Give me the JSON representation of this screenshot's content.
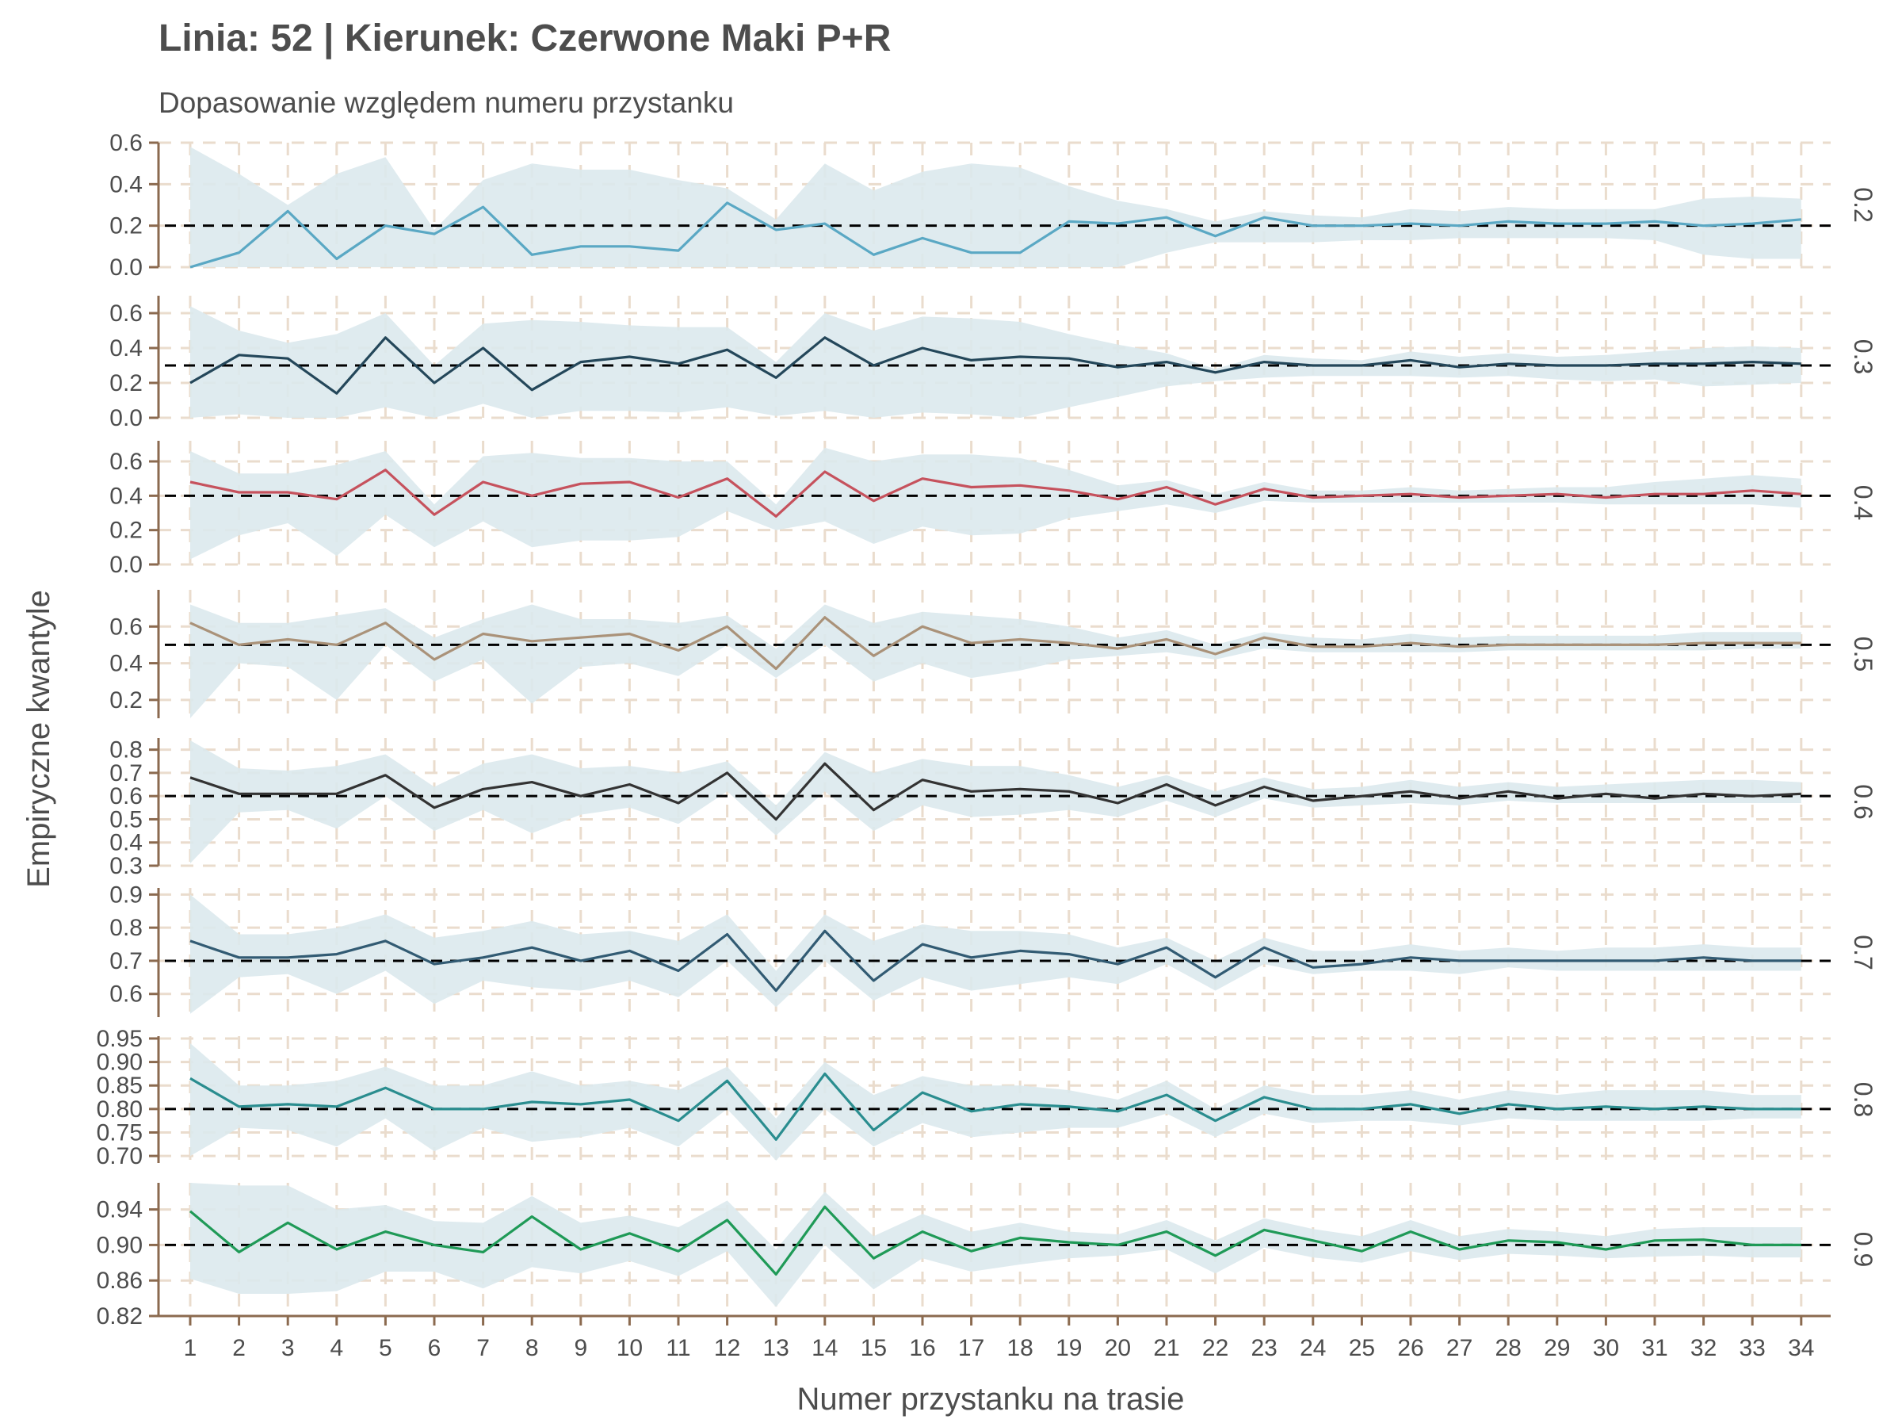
{
  "chart_data": {
    "type": "line",
    "title": "Linia: 52 | Kierunek: Czerwone Maki P+R",
    "subtitle": "Dopasowanie względem numeru przystanku",
    "xlabel": "Numer przystanku na trasie",
    "ylabel": "Empiryczne kwantyle",
    "x": [
      1,
      2,
      3,
      4,
      5,
      6,
      7,
      8,
      9,
      10,
      11,
      12,
      13,
      14,
      15,
      16,
      17,
      18,
      19,
      20,
      21,
      22,
      23,
      24,
      25,
      26,
      27,
      28,
      29,
      30,
      31,
      32,
      33,
      34
    ],
    "x_tick_labels": [
      "1",
      "2",
      "3",
      "4",
      "5",
      "6",
      "7",
      "8",
      "9",
      "10",
      "11",
      "12",
      "13",
      "14",
      "15",
      "16",
      "17",
      "18",
      "19",
      "20",
      "21",
      "22",
      "23",
      "24",
      "25",
      "26",
      "27",
      "28",
      "29",
      "30",
      "31",
      "32",
      "33",
      "34"
    ],
    "grid": true,
    "band_color": "#dbe9ed",
    "reference_line_style": "dashed black",
    "panels": [
      {
        "strip_label": "0.2",
        "reference": 0.2,
        "color": "#5aa8c4",
        "ylim": [
          0,
          0.6
        ],
        "y_ticks": [
          "0.0",
          "0.2",
          "0.4",
          "0.6"
        ],
        "values": [
          0.0,
          0.07,
          0.27,
          0.04,
          0.2,
          0.16,
          0.29,
          0.06,
          0.1,
          0.1,
          0.08,
          0.31,
          0.18,
          0.21,
          0.06,
          0.14,
          0.07,
          0.07,
          0.22,
          0.21,
          0.24,
          0.15,
          0.24,
          0.2,
          0.2,
          0.21,
          0.2,
          0.22,
          0.21,
          0.21,
          0.22,
          0.2,
          0.21,
          0.23
        ],
        "lower": [
          0.0,
          0.0,
          0.0,
          0.0,
          0.0,
          0.0,
          0.0,
          0.0,
          0.0,
          0.0,
          0.0,
          0.0,
          0.0,
          0.0,
          0.0,
          0.0,
          0.0,
          0.0,
          0.0,
          0.0,
          0.07,
          0.12,
          0.12,
          0.12,
          0.13,
          0.13,
          0.14,
          0.14,
          0.14,
          0.14,
          0.13,
          0.06,
          0.04,
          0.04
        ],
        "upper": [
          0.58,
          0.45,
          0.3,
          0.45,
          0.53,
          0.18,
          0.42,
          0.5,
          0.47,
          0.47,
          0.42,
          0.38,
          0.23,
          0.5,
          0.37,
          0.46,
          0.5,
          0.48,
          0.39,
          0.32,
          0.28,
          0.22,
          0.27,
          0.25,
          0.24,
          0.28,
          0.27,
          0.29,
          0.28,
          0.28,
          0.28,
          0.33,
          0.34,
          0.33
        ]
      },
      {
        "strip_label": "0.3",
        "reference": 0.3,
        "color": "#24475a",
        "ylim": [
          0,
          0.7
        ],
        "y_ticks": [
          "0.0",
          "0.2",
          "0.4",
          "0.6"
        ],
        "values": [
          0.2,
          0.36,
          0.34,
          0.14,
          0.46,
          0.2,
          0.4,
          0.16,
          0.32,
          0.35,
          0.31,
          0.39,
          0.23,
          0.46,
          0.3,
          0.4,
          0.33,
          0.35,
          0.34,
          0.29,
          0.32,
          0.26,
          0.32,
          0.3,
          0.3,
          0.33,
          0.29,
          0.31,
          0.3,
          0.3,
          0.31,
          0.31,
          0.32,
          0.31
        ],
        "lower": [
          0.0,
          0.02,
          0.0,
          0.0,
          0.06,
          0.0,
          0.08,
          0.0,
          0.04,
          0.04,
          0.03,
          0.06,
          0.01,
          0.04,
          0.0,
          0.03,
          0.02,
          0.0,
          0.06,
          0.12,
          0.18,
          0.21,
          0.23,
          0.24,
          0.24,
          0.24,
          0.23,
          0.24,
          0.22,
          0.21,
          0.22,
          0.18,
          0.19,
          0.2
        ],
        "upper": [
          0.64,
          0.5,
          0.43,
          0.48,
          0.6,
          0.3,
          0.54,
          0.56,
          0.55,
          0.53,
          0.52,
          0.52,
          0.32,
          0.6,
          0.5,
          0.58,
          0.57,
          0.55,
          0.48,
          0.42,
          0.37,
          0.28,
          0.36,
          0.34,
          0.33,
          0.38,
          0.35,
          0.37,
          0.35,
          0.36,
          0.38,
          0.4,
          0.41,
          0.4
        ]
      },
      {
        "strip_label": "0.4",
        "reference": 0.4,
        "color": "#c6525d",
        "ylim": [
          0,
          0.72
        ],
        "y_ticks": [
          "0.0",
          "0.2",
          "0.4",
          "0.6"
        ],
        "values": [
          0.48,
          0.42,
          0.42,
          0.38,
          0.55,
          0.29,
          0.48,
          0.4,
          0.47,
          0.48,
          0.39,
          0.5,
          0.28,
          0.54,
          0.37,
          0.5,
          0.45,
          0.46,
          0.43,
          0.38,
          0.45,
          0.35,
          0.44,
          0.39,
          0.4,
          0.41,
          0.39,
          0.4,
          0.41,
          0.39,
          0.41,
          0.41,
          0.43,
          0.41
        ],
        "lower": [
          0.03,
          0.17,
          0.24,
          0.05,
          0.29,
          0.1,
          0.25,
          0.1,
          0.14,
          0.14,
          0.16,
          0.31,
          0.2,
          0.25,
          0.12,
          0.22,
          0.17,
          0.18,
          0.27,
          0.31,
          0.35,
          0.3,
          0.37,
          0.36,
          0.36,
          0.36,
          0.36,
          0.36,
          0.36,
          0.35,
          0.35,
          0.35,
          0.35,
          0.33
        ],
        "upper": [
          0.66,
          0.53,
          0.53,
          0.58,
          0.66,
          0.35,
          0.63,
          0.65,
          0.62,
          0.62,
          0.6,
          0.6,
          0.35,
          0.68,
          0.6,
          0.64,
          0.64,
          0.62,
          0.55,
          0.46,
          0.49,
          0.41,
          0.48,
          0.43,
          0.43,
          0.45,
          0.43,
          0.44,
          0.45,
          0.45,
          0.48,
          0.5,
          0.52,
          0.5
        ]
      },
      {
        "strip_label": "0.5",
        "reference": 0.5,
        "color": "#aa9279",
        "ylim": [
          0.1,
          0.8
        ],
        "y_ticks": [
          "0.2",
          "0.4",
          "0.6"
        ],
        "values": [
          0.62,
          0.5,
          0.53,
          0.5,
          0.62,
          0.42,
          0.56,
          0.52,
          0.54,
          0.56,
          0.47,
          0.6,
          0.37,
          0.65,
          0.44,
          0.6,
          0.51,
          0.53,
          0.51,
          0.48,
          0.53,
          0.45,
          0.54,
          0.49,
          0.49,
          0.51,
          0.49,
          0.5,
          0.5,
          0.5,
          0.5,
          0.51,
          0.51,
          0.51
        ],
        "lower": [
          0.1,
          0.4,
          0.38,
          0.2,
          0.5,
          0.3,
          0.42,
          0.18,
          0.38,
          0.4,
          0.33,
          0.5,
          0.32,
          0.5,
          0.3,
          0.4,
          0.32,
          0.36,
          0.42,
          0.44,
          0.46,
          0.42,
          0.48,
          0.46,
          0.46,
          0.46,
          0.46,
          0.47,
          0.47,
          0.47,
          0.47,
          0.47,
          0.48,
          0.48
        ],
        "upper": [
          0.72,
          0.62,
          0.62,
          0.66,
          0.7,
          0.54,
          0.64,
          0.72,
          0.64,
          0.64,
          0.62,
          0.66,
          0.48,
          0.72,
          0.62,
          0.68,
          0.66,
          0.64,
          0.6,
          0.54,
          0.58,
          0.5,
          0.57,
          0.54,
          0.53,
          0.56,
          0.54,
          0.55,
          0.55,
          0.55,
          0.55,
          0.57,
          0.57,
          0.57
        ]
      },
      {
        "strip_label": "0.6",
        "reference": 0.6,
        "color": "#333333",
        "ylim": [
          0.3,
          0.85
        ],
        "y_ticks": [
          "0.3",
          "0.4",
          "0.5",
          "0.6",
          "0.7",
          "0.8"
        ],
        "values": [
          0.68,
          0.61,
          0.61,
          0.61,
          0.69,
          0.55,
          0.63,
          0.66,
          0.6,
          0.65,
          0.57,
          0.7,
          0.5,
          0.74,
          0.54,
          0.67,
          0.62,
          0.63,
          0.62,
          0.57,
          0.65,
          0.56,
          0.64,
          0.58,
          0.6,
          0.62,
          0.59,
          0.62,
          0.59,
          0.61,
          0.59,
          0.61,
          0.6,
          0.61
        ],
        "lower": [
          0.31,
          0.53,
          0.54,
          0.46,
          0.6,
          0.45,
          0.54,
          0.44,
          0.52,
          0.55,
          0.48,
          0.62,
          0.43,
          0.62,
          0.45,
          0.56,
          0.51,
          0.52,
          0.54,
          0.51,
          0.58,
          0.51,
          0.59,
          0.55,
          0.56,
          0.57,
          0.56,
          0.58,
          0.57,
          0.57,
          0.57,
          0.57,
          0.57,
          0.57
        ],
        "upper": [
          0.84,
          0.72,
          0.71,
          0.73,
          0.78,
          0.64,
          0.74,
          0.78,
          0.72,
          0.73,
          0.7,
          0.75,
          0.56,
          0.79,
          0.7,
          0.76,
          0.73,
          0.73,
          0.69,
          0.64,
          0.69,
          0.62,
          0.68,
          0.63,
          0.64,
          0.67,
          0.64,
          0.66,
          0.64,
          0.65,
          0.66,
          0.67,
          0.67,
          0.66
        ]
      },
      {
        "strip_label": "0.7",
        "reference": 0.7,
        "color": "#325b73",
        "ylim": [
          0.53,
          0.92
        ],
        "y_ticks": [
          "0.6",
          "0.7",
          "0.8",
          "0.9"
        ],
        "values": [
          0.76,
          0.71,
          0.71,
          0.72,
          0.76,
          0.69,
          0.71,
          0.74,
          0.7,
          0.73,
          0.67,
          0.78,
          0.61,
          0.79,
          0.64,
          0.75,
          0.71,
          0.73,
          0.72,
          0.69,
          0.74,
          0.65,
          0.74,
          0.68,
          0.69,
          0.71,
          0.7,
          0.7,
          0.7,
          0.7,
          0.7,
          0.71,
          0.7,
          0.7
        ],
        "lower": [
          0.54,
          0.65,
          0.66,
          0.6,
          0.67,
          0.57,
          0.64,
          0.62,
          0.61,
          0.64,
          0.59,
          0.7,
          0.56,
          0.7,
          0.58,
          0.65,
          0.61,
          0.63,
          0.65,
          0.63,
          0.69,
          0.61,
          0.69,
          0.66,
          0.67,
          0.67,
          0.66,
          0.68,
          0.67,
          0.67,
          0.67,
          0.67,
          0.67,
          0.67
        ],
        "upper": [
          0.9,
          0.78,
          0.78,
          0.8,
          0.84,
          0.77,
          0.79,
          0.82,
          0.78,
          0.79,
          0.76,
          0.84,
          0.67,
          0.84,
          0.76,
          0.81,
          0.79,
          0.79,
          0.78,
          0.74,
          0.77,
          0.7,
          0.77,
          0.73,
          0.73,
          0.75,
          0.73,
          0.74,
          0.73,
          0.74,
          0.74,
          0.75,
          0.74,
          0.74
        ]
      },
      {
        "strip_label": "0.8",
        "reference": 0.8,
        "color": "#2a8d8f",
        "ylim": [
          0.685,
          0.955
        ],
        "y_ticks": [
          "0.70",
          "0.75",
          "0.80",
          "0.85",
          "0.90",
          "0.95"
        ],
        "values": [
          0.865,
          0.805,
          0.81,
          0.805,
          0.845,
          0.8,
          0.8,
          0.815,
          0.81,
          0.82,
          0.775,
          0.86,
          0.735,
          0.875,
          0.755,
          0.835,
          0.795,
          0.81,
          0.805,
          0.795,
          0.83,
          0.775,
          0.825,
          0.8,
          0.8,
          0.81,
          0.79,
          0.81,
          0.8,
          0.805,
          0.8,
          0.805,
          0.8,
          0.8
        ],
        "lower": [
          0.7,
          0.76,
          0.755,
          0.72,
          0.78,
          0.71,
          0.76,
          0.73,
          0.74,
          0.76,
          0.72,
          0.8,
          0.69,
          0.8,
          0.72,
          0.77,
          0.74,
          0.75,
          0.76,
          0.76,
          0.79,
          0.74,
          0.79,
          0.77,
          0.775,
          0.775,
          0.765,
          0.78,
          0.775,
          0.775,
          0.775,
          0.775,
          0.78,
          0.78
        ],
        "upper": [
          0.94,
          0.85,
          0.85,
          0.86,
          0.89,
          0.85,
          0.85,
          0.88,
          0.85,
          0.86,
          0.84,
          0.89,
          0.78,
          0.9,
          0.83,
          0.87,
          0.85,
          0.85,
          0.84,
          0.82,
          0.86,
          0.8,
          0.85,
          0.83,
          0.83,
          0.84,
          0.82,
          0.84,
          0.83,
          0.84,
          0.84,
          0.84,
          0.83,
          0.83
        ]
      },
      {
        "strip_label": "0.9",
        "reference": 0.9,
        "color": "#1f9a57",
        "ylim": [
          0.82,
          0.97
        ],
        "y_ticks": [
          "0.82",
          "0.86",
          "0.90",
          "0.94"
        ],
        "values": [
          0.938,
          0.892,
          0.925,
          0.895,
          0.915,
          0.9,
          0.892,
          0.932,
          0.895,
          0.913,
          0.893,
          0.928,
          0.867,
          0.943,
          0.885,
          0.915,
          0.893,
          0.908,
          0.903,
          0.9,
          0.915,
          0.888,
          0.917,
          0.905,
          0.893,
          0.915,
          0.895,
          0.905,
          0.903,
          0.895,
          0.905,
          0.906,
          0.9,
          0.9
        ],
        "lower": [
          0.862,
          0.845,
          0.845,
          0.848,
          0.87,
          0.87,
          0.851,
          0.875,
          0.868,
          0.882,
          0.865,
          0.893,
          0.83,
          0.9,
          0.85,
          0.885,
          0.87,
          0.878,
          0.885,
          0.888,
          0.895,
          0.868,
          0.897,
          0.886,
          0.88,
          0.893,
          0.883,
          0.89,
          0.888,
          0.885,
          0.887,
          0.888,
          0.886,
          0.886
        ],
        "upper": [
          0.97,
          0.967,
          0.967,
          0.94,
          0.945,
          0.927,
          0.925,
          0.955,
          0.925,
          0.933,
          0.92,
          0.95,
          0.895,
          0.96,
          0.91,
          0.935,
          0.915,
          0.925,
          0.915,
          0.912,
          0.928,
          0.905,
          0.93,
          0.918,
          0.91,
          0.928,
          0.91,
          0.918,
          0.915,
          0.91,
          0.918,
          0.92,
          0.92,
          0.92
        ]
      }
    ]
  }
}
